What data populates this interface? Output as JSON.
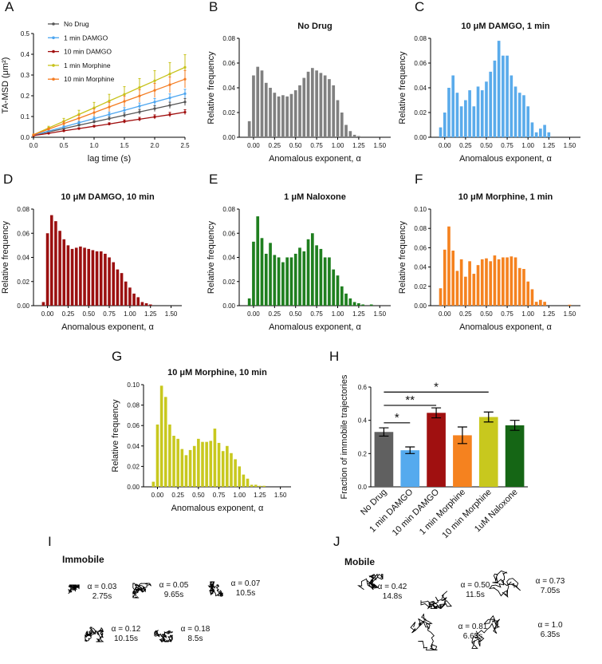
{
  "chart_data": [
    {
      "panel": "A",
      "type": "line",
      "xlabel": "lag time (s)",
      "ylabel": "TA-MSD (μm²)",
      "x": [
        0,
        0.25,
        0.5,
        0.75,
        1,
        1.25,
        1.5,
        1.75,
        2,
        2.25,
        2.5
      ],
      "xlim": [
        0,
        2.5
      ],
      "ylim": [
        0,
        0.5
      ],
      "xticks": [
        {
          "value": 0,
          "label": "0.0"
        },
        0.5,
        {
          "value": 1,
          "label": "1.0"
        },
        1.5,
        {
          "value": 2,
          "label": "2.0"
        },
        2.5
      ],
      "yticks": [
        {
          "value": 0,
          "label": "0.0"
        },
        0.1,
        0.2,
        0.3,
        0.4,
        0.5
      ],
      "series": [
        {
          "name": "No Drug",
          "color": "#555555",
          "values": [
            0.01,
            0.026,
            0.042,
            0.058,
            0.074,
            0.09,
            0.106,
            0.122,
            0.138,
            0.154,
            0.17
          ],
          "errors": [
            0.001,
            0.003,
            0.004,
            0.006,
            0.007,
            0.009,
            0.011,
            0.012,
            0.014,
            0.015,
            0.017
          ]
        },
        {
          "name": "1 min DAMGO",
          "color": "#4da6f0",
          "values": [
            0.01,
            0.03,
            0.05,
            0.07,
            0.09,
            0.11,
            0.13,
            0.15,
            0.17,
            0.19,
            0.21
          ],
          "errors": [
            0.001,
            0.003,
            0.005,
            0.007,
            0.009,
            0.011,
            0.013,
            0.015,
            0.017,
            0.019,
            0.021
          ]
        },
        {
          "name": "10 min DAMGO",
          "color": "#a00d0d",
          "values": [
            0.008,
            0.019,
            0.031,
            0.042,
            0.053,
            0.064,
            0.076,
            0.087,
            0.098,
            0.109,
            0.121
          ],
          "errors": [
            0.001,
            0.002,
            0.003,
            0.004,
            0.005,
            0.006,
            0.008,
            0.009,
            0.01,
            0.011,
            0.012
          ]
        },
        {
          "name": "1 min Morphine",
          "color": "#c7c21a",
          "values": [
            0.012,
            0.045,
            0.077,
            0.11,
            0.142,
            0.175,
            0.207,
            0.24,
            0.272,
            0.305,
            0.337
          ],
          "errors": [
            0.002,
            0.008,
            0.014,
            0.02,
            0.026,
            0.032,
            0.037,
            0.043,
            0.049,
            0.055,
            0.061
          ]
        },
        {
          "name": "10 min Morphine",
          "color": "#f47b20",
          "values": [
            0.012,
            0.039,
            0.066,
            0.092,
            0.119,
            0.146,
            0.173,
            0.199,
            0.226,
            0.253,
            0.28
          ],
          "errors": [
            0.002,
            0.006,
            0.01,
            0.014,
            0.018,
            0.022,
            0.026,
            0.03,
            0.034,
            0.038,
            0.042
          ]
        }
      ]
    },
    {
      "panel": "B",
      "type": "histogram",
      "title": "No Drug",
      "xlabel": "Anomalous exponent, α",
      "ylabel": "Relative frequency",
      "color": "#808080",
      "bins": [
        -0.075,
        -0.025,
        0.025,
        0.075,
        0.125,
        0.175,
        0.225,
        0.275,
        0.325,
        0.375,
        0.425,
        0.475,
        0.525,
        0.575,
        0.625,
        0.675,
        0.725,
        0.775,
        0.825,
        0.875,
        0.925,
        0.975,
        1.025,
        1.075,
        1.125,
        1.175,
        1.225,
        1.275,
        1.325,
        1.375,
        1.425,
        1.475,
        1.525
      ],
      "values": [
        0.013,
        0.05,
        0.057,
        0.054,
        0.044,
        0.04,
        0.036,
        0.033,
        0.034,
        0.033,
        0.035,
        0.038,
        0.042,
        0.048,
        0.053,
        0.056,
        0.054,
        0.052,
        0.05,
        0.047,
        0.042,
        0.03,
        0.02,
        0.01,
        0.005,
        0.002,
        0.001,
        0,
        0,
        0,
        0,
        0
      ],
      "xlim": [
        -0.17,
        1.63
      ],
      "ylim": [
        0,
        0.08
      ],
      "xticks": [
        {
          "value": 0,
          "label": "0.00"
        },
        0.25,
        {
          "value": 0.5,
          "label": "0.50"
        },
        0.75,
        {
          "value": 1,
          "label": "1.00"
        },
        1.25,
        {
          "value": 1.5,
          "label": "1.50"
        }
      ],
      "yticks": [
        {
          "value": 0,
          "label": "0.00"
        },
        0.02,
        0.04,
        0.06,
        0.08
      ]
    },
    {
      "panel": "C",
      "type": "histogram",
      "title": "10 μM DAMGO, 1 min",
      "xlabel": "Anomalous exponent, α",
      "ylabel": "Relative frequency",
      "color": "#5aabeb",
      "bins": [
        -0.075,
        -0.025,
        0.025,
        0.075,
        0.125,
        0.175,
        0.225,
        0.275,
        0.325,
        0.375,
        0.425,
        0.475,
        0.525,
        0.575,
        0.625,
        0.675,
        0.725,
        0.775,
        0.825,
        0.875,
        0.925,
        0.975,
        1.025,
        1.075,
        1.125,
        1.175,
        1.225,
        1.275,
        1.325,
        1.375,
        1.425,
        1.475,
        1.525
      ],
      "values": [
        0.008,
        0.02,
        0.04,
        0.05,
        0.036,
        0.025,
        0.03,
        0.038,
        0.025,
        0.041,
        0.038,
        0.045,
        0.053,
        0.062,
        0.078,
        0.066,
        0.066,
        0.05,
        0.041,
        0.036,
        0.034,
        0.025,
        0.012,
        0.004,
        0.007,
        0.01,
        0.004,
        0,
        0,
        0,
        0,
        0
      ],
      "xlim": [
        -0.17,
        1.63
      ],
      "ylim": [
        0,
        0.08
      ],
      "xticks": [
        {
          "value": 0,
          "label": "0.00"
        },
        0.25,
        {
          "value": 0.5,
          "label": "0.50"
        },
        0.75,
        {
          "value": 1,
          "label": "1.00"
        },
        1.25,
        {
          "value": 1.5,
          "label": "1.50"
        }
      ],
      "yticks": [
        {
          "value": 0,
          "label": "0.00"
        },
        0.02,
        0.04,
        0.06,
        0.08
      ]
    },
    {
      "panel": "D",
      "type": "histogram",
      "title": "10 μM DAMGO, 10 min",
      "xlabel": "Anomalous exponent, α",
      "ylabel": "Relative frequency",
      "color": "#9b1010",
      "bins": [
        -0.075,
        -0.025,
        0.025,
        0.075,
        0.125,
        0.175,
        0.225,
        0.275,
        0.325,
        0.375,
        0.425,
        0.475,
        0.525,
        0.575,
        0.625,
        0.675,
        0.725,
        0.775,
        0.825,
        0.875,
        0.925,
        0.975,
        1.025,
        1.075,
        1.125,
        1.175,
        1.225,
        1.275,
        1.325,
        1.375,
        1.425,
        1.475,
        1.525
      ],
      "values": [
        0.003,
        0.06,
        0.075,
        0.07,
        0.062,
        0.055,
        0.05,
        0.047,
        0.048,
        0.049,
        0.048,
        0.047,
        0.046,
        0.045,
        0.045,
        0.043,
        0.04,
        0.036,
        0.03,
        0.027,
        0.02,
        0.015,
        0.01,
        0.007,
        0.003,
        0.002,
        0.001,
        0,
        0,
        0,
        0,
        0
      ],
      "xlim": [
        -0.17,
        1.63
      ],
      "ylim": [
        0,
        0.08
      ],
      "xticks": [
        {
          "value": 0,
          "label": "0.00"
        },
        0.25,
        {
          "value": 0.5,
          "label": "0.50"
        },
        0.75,
        {
          "value": 1,
          "label": "1.00"
        },
        1.25,
        {
          "value": 1.5,
          "label": "1.50"
        }
      ],
      "yticks": [
        {
          "value": 0,
          "label": "0.00"
        },
        0.02,
        0.04,
        0.06,
        0.08
      ]
    },
    {
      "panel": "E",
      "type": "histogram",
      "title": "1 μM Naloxone",
      "xlabel": "Anomalous exponent, α",
      "ylabel": "Relative frequency",
      "color": "#1f7f1f",
      "bins": [
        -0.075,
        -0.025,
        0.025,
        0.075,
        0.125,
        0.175,
        0.225,
        0.275,
        0.325,
        0.375,
        0.425,
        0.475,
        0.525,
        0.575,
        0.625,
        0.675,
        0.725,
        0.775,
        0.825,
        0.875,
        0.925,
        0.975,
        1.025,
        1.075,
        1.125,
        1.175,
        1.225,
        1.275,
        1.325,
        1.375,
        1.425,
        1.475,
        1.525
      ],
      "values": [
        0.006,
        0.053,
        0.074,
        0.056,
        0.043,
        0.052,
        0.042,
        0.04,
        0.036,
        0.04,
        0.04,
        0.043,
        0.048,
        0.045,
        0.055,
        0.06,
        0.05,
        0.047,
        0.04,
        0.04,
        0.03,
        0.025,
        0.016,
        0.01,
        0.006,
        0.003,
        0.002,
        0.001,
        0,
        0.001,
        0,
        0
      ],
      "xlim": [
        -0.17,
        1.63
      ],
      "ylim": [
        0,
        0.08
      ],
      "xticks": [
        {
          "value": 0,
          "label": "0.00"
        },
        0.25,
        {
          "value": 0.5,
          "label": "0.50"
        },
        0.75,
        {
          "value": 1,
          "label": "1.00"
        },
        1.25,
        {
          "value": 1.5,
          "label": "1.50"
        }
      ],
      "yticks": [
        {
          "value": 0,
          "label": "0.00"
        },
        0.02,
        0.04,
        0.06,
        0.08
      ]
    },
    {
      "panel": "F",
      "type": "histogram",
      "title": "10 μM Morphine, 1 min",
      "xlabel": "Anomalous exponent, α",
      "ylabel": "Relative frequency",
      "color": "#f5821f",
      "bins": [
        -0.075,
        -0.025,
        0.025,
        0.075,
        0.125,
        0.175,
        0.225,
        0.275,
        0.325,
        0.375,
        0.425,
        0.475,
        0.525,
        0.575,
        0.625,
        0.675,
        0.725,
        0.775,
        0.825,
        0.875,
        0.925,
        0.975,
        1.025,
        1.075,
        1.125,
        1.175,
        1.225,
        1.275,
        1.325,
        1.375,
        1.425,
        1.475,
        1.525
      ],
      "values": [
        0.018,
        0.058,
        0.082,
        0.057,
        0.036,
        0.048,
        0.03,
        0.046,
        0.033,
        0.042,
        0.048,
        0.049,
        0.046,
        0.052,
        0.048,
        0.05,
        0.05,
        0.051,
        0.05,
        0.039,
        0.038,
        0.025,
        0.017,
        0.004,
        0.006,
        0.004,
        0,
        0,
        0,
        0,
        0,
        0.001
      ],
      "xlim": [
        -0.17,
        1.63
      ],
      "ylim": [
        0,
        0.1
      ],
      "xticks": [
        {
          "value": 0,
          "label": "0.00"
        },
        0.25,
        {
          "value": 0.5,
          "label": "0.50"
        },
        0.75,
        {
          "value": 1,
          "label": "1.00"
        },
        1.25,
        {
          "value": 1.5,
          "label": "1.50"
        }
      ],
      "yticks": [
        {
          "value": 0,
          "label": "0.00"
        },
        0.02,
        0.04,
        0.06,
        0.08,
        {
          "value": 0.1,
          "label": "0.10"
        }
      ]
    },
    {
      "panel": "G",
      "type": "histogram",
      "title": "10 μM Morphine, 10 min",
      "xlabel": "Anomalous exponent, α",
      "ylabel": "Relative frequency",
      "color": "#c8c81e",
      "bins": [
        -0.075,
        -0.025,
        0.025,
        0.075,
        0.125,
        0.175,
        0.225,
        0.275,
        0.325,
        0.375,
        0.425,
        0.475,
        0.525,
        0.575,
        0.625,
        0.675,
        0.725,
        0.775,
        0.825,
        0.875,
        0.925,
        0.975,
        1.025,
        1.075,
        1.125,
        1.175,
        1.225,
        1.275,
        1.325,
        1.375,
        1.425,
        1.475,
        1.525
      ],
      "values": [
        0.005,
        0.061,
        0.099,
        0.088,
        0.061,
        0.05,
        0.047,
        0.037,
        0.031,
        0.036,
        0.04,
        0.047,
        0.044,
        0.044,
        0.045,
        0.057,
        0.043,
        0.035,
        0.04,
        0.033,
        0.027,
        0.02,
        0.012,
        0.008,
        0.002,
        0.002,
        0.001,
        0.001,
        0,
        0,
        0,
        0
      ],
      "xlim": [
        -0.17,
        1.63
      ],
      "ylim": [
        0,
        0.1
      ],
      "xticks": [
        {
          "value": 0,
          "label": "0.00"
        },
        0.25,
        {
          "value": 0.5,
          "label": "0.50"
        },
        0.75,
        {
          "value": 1,
          "label": "1.00"
        },
        1.25,
        {
          "value": 1.5,
          "label": "1.50"
        }
      ],
      "yticks": [
        {
          "value": 0,
          "label": "0.00"
        },
        0.02,
        0.04,
        0.06,
        0.08,
        {
          "value": 0.1,
          "label": "0.10"
        }
      ]
    },
    {
      "panel": "H",
      "type": "bar",
      "ylabel": "Fraction of immobile trajectories",
      "categories": [
        "No Drug",
        "1 min DAMGO",
        "10 min DAMGO",
        "1 min Morphine",
        "10 min Morphine",
        "1uM Naloxone"
      ],
      "values": [
        0.33,
        0.22,
        0.445,
        0.31,
        0.42,
        0.37
      ],
      "errors": [
        0.025,
        0.02,
        0.03,
        0.05,
        0.03,
        0.03
      ],
      "colors": [
        "#606060",
        "#55aaee",
        "#a01010",
        "#f5821f",
        "#c8c81e",
        "#156615"
      ],
      "ylim": [
        0,
        0.6
      ],
      "yticks": [
        {
          "value": 0,
          "label": "0.0"
        },
        0.2,
        0.4,
        0.6
      ],
      "annotations": [
        "*",
        "**",
        "*"
      ]
    }
  ],
  "trajectories": [
    {
      "panel": "I",
      "title": "Immobile",
      "items": [
        {
          "alpha": "α = 0.03",
          "time": "2.75s"
        },
        {
          "alpha": "α = 0.05",
          "time": "9.65s"
        },
        {
          "alpha": "α = 0.07",
          "time": "10.5s"
        },
        {
          "alpha": "α = 0.12",
          "time": "10.15s"
        },
        {
          "alpha": "α = 0.18",
          "time": "8.5s"
        }
      ]
    },
    {
      "panel": "J",
      "title": "Mobile",
      "items": [
        {
          "alpha": "α = 0.42",
          "time": "14.8s"
        },
        {
          "alpha": "α = 0.50",
          "time": "11.5s"
        },
        {
          "alpha": "α = 0.73",
          "time": "7.05s"
        },
        {
          "alpha": "α = 0.81",
          "time": "6.65s"
        },
        {
          "alpha": "α = 1.0",
          "time": "6.35s"
        }
      ]
    }
  ]
}
